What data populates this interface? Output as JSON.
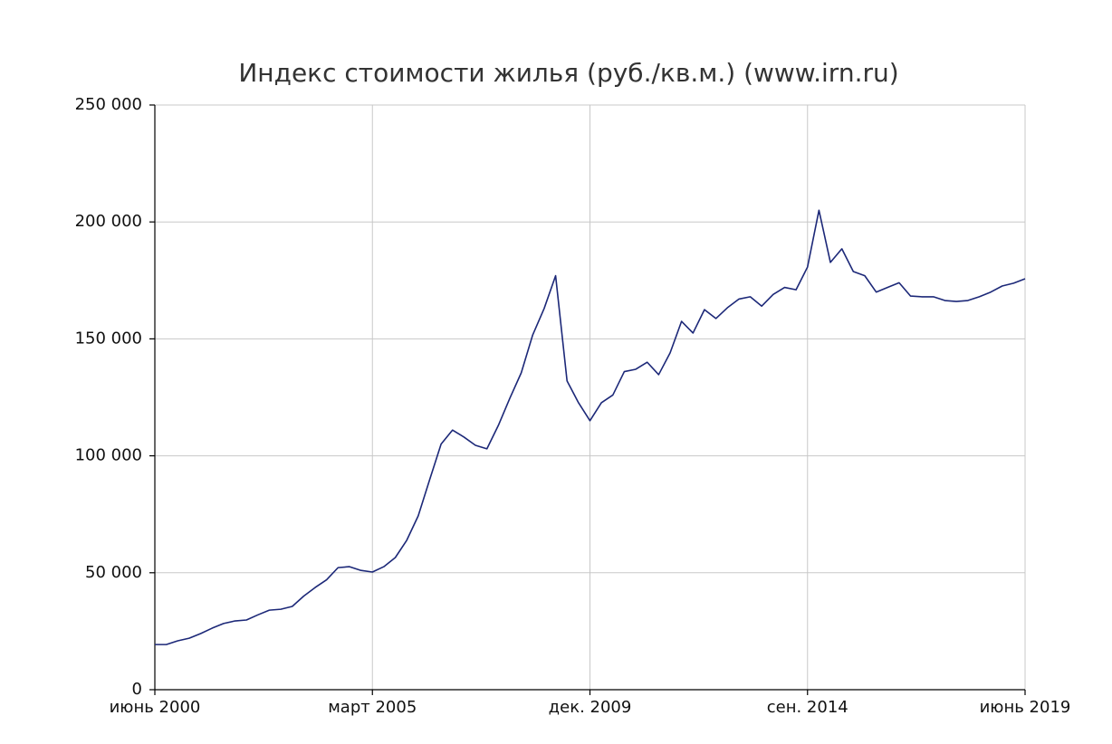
{
  "chart_data": {
    "type": "line",
    "title": "Индекс стоимости жилья (руб./кв.м.) (www.irn.ru)",
    "x": [
      "2000-06",
      "2000-09",
      "2000-12",
      "2001-03",
      "2001-06",
      "2001-09",
      "2001-12",
      "2002-03",
      "2002-06",
      "2002-09",
      "2002-12",
      "2003-03",
      "2003-06",
      "2003-09",
      "2003-12",
      "2004-03",
      "2004-06",
      "2004-09",
      "2004-12",
      "2005-03",
      "2005-06",
      "2005-09",
      "2005-12",
      "2006-03",
      "2006-06",
      "2006-09",
      "2006-12",
      "2007-03",
      "2007-06",
      "2007-09",
      "2007-12",
      "2008-03",
      "2008-06",
      "2008-09",
      "2008-12",
      "2009-03",
      "2009-06",
      "2009-09",
      "2009-12",
      "2010-03",
      "2010-06",
      "2010-09",
      "2010-12",
      "2011-03",
      "2011-06",
      "2011-09",
      "2011-12",
      "2012-03",
      "2012-06",
      "2012-09",
      "2012-12",
      "2013-03",
      "2013-06",
      "2013-09",
      "2013-12",
      "2014-03",
      "2014-06",
      "2014-09",
      "2014-12",
      "2015-03",
      "2015-06",
      "2015-09",
      "2015-12",
      "2016-03",
      "2016-06",
      "2016-09",
      "2016-12",
      "2017-03",
      "2017-06",
      "2017-09",
      "2017-12",
      "2018-03",
      "2018-06",
      "2018-09",
      "2018-12",
      "2019-03",
      "2019-06"
    ],
    "values": [
      19300,
      19300,
      20900,
      22000,
      24000,
      26300,
      28300,
      29400,
      29800,
      32000,
      34000,
      34400,
      35600,
      40000,
      43700,
      47000,
      52200,
      52600,
      51000,
      50300,
      52600,
      56500,
      63900,
      74300,
      89800,
      105000,
      111000,
      108000,
      104500,
      103000,
      113000,
      124600,
      135500,
      151700,
      163000,
      177000,
      132000,
      122700,
      115000,
      122700,
      126000,
      136000,
      137000,
      140000,
      134700,
      144000,
      157500,
      152500,
      162500,
      158700,
      163300,
      167000,
      168000,
      164000,
      169000,
      172000,
      171000,
      180700,
      205000,
      182700,
      188500,
      178800,
      177000,
      170000,
      172000,
      174000,
      168300,
      168000,
      168000,
      166400,
      166000,
      166400,
      168000,
      170000,
      172600,
      173800,
      175700
    ],
    "color": "#1c2878",
    "xlim": [
      "2000-06",
      "2019-06"
    ],
    "xticks": [
      {
        "value": "2000-06",
        "label": "июнь 2000"
      },
      {
        "value": "2005-03",
        "label": "март 2005"
      },
      {
        "value": "2009-12",
        "label": "дек. 2009"
      },
      {
        "value": "2014-09",
        "label": "сен. 2014"
      },
      {
        "value": "2019-06",
        "label": "июнь 2019"
      }
    ],
    "ylim": [
      0,
      250000
    ],
    "yticks": [
      0,
      {
        "value": 50000,
        "label": "50 000"
      },
      {
        "value": 100000,
        "label": "100 000"
      },
      {
        "value": 150000,
        "label": "150 000"
      },
      {
        "value": 200000,
        "label": "200 000"
      },
      {
        "value": 250000,
        "label": "250 000"
      }
    ],
    "grid": true
  }
}
